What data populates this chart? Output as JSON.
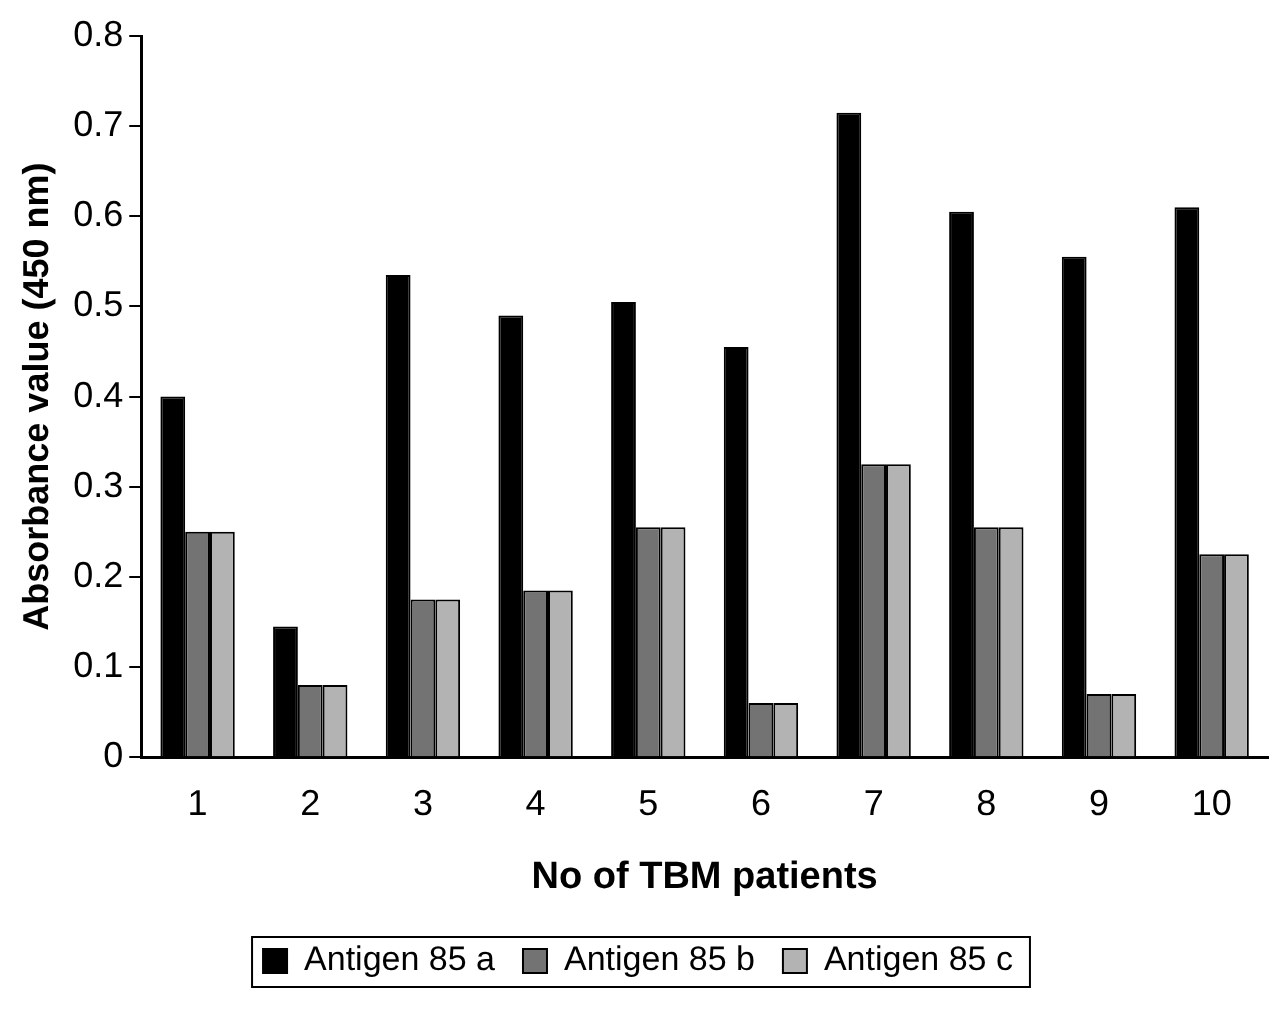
{
  "chart_data": {
    "type": "bar",
    "xlabel": "No of TBM patients",
    "ylabel": "Absorbance value (450 nm)",
    "categories": [
      "1",
      "2",
      "3",
      "4",
      "5",
      "6",
      "7",
      "8",
      "9",
      "10"
    ],
    "series": [
      {
        "name": "Antigen 85 a",
        "color": "#000000",
        "values": [
          0.4,
          0.145,
          0.535,
          0.49,
          0.505,
          0.455,
          0.715,
          0.605,
          0.555,
          0.61
        ]
      },
      {
        "name": "Antigen 85 b",
        "color": "#737373",
        "values": [
          0.25,
          0.08,
          0.175,
          0.185,
          0.255,
          0.06,
          0.325,
          0.255,
          0.07,
          0.225
        ]
      },
      {
        "name": "Antigen 85 c",
        "color": "#b3b3b3",
        "values": [
          0.25,
          0.08,
          0.175,
          0.185,
          0.255,
          0.06,
          0.325,
          0.255,
          0.07,
          0.225
        ]
      }
    ],
    "ylim": [
      0,
      0.8
    ],
    "yticks": [
      0,
      0.1,
      0.2,
      0.3,
      0.4,
      0.5,
      0.6,
      0.7,
      0.8
    ],
    "grid": false,
    "legend": "bottom"
  }
}
